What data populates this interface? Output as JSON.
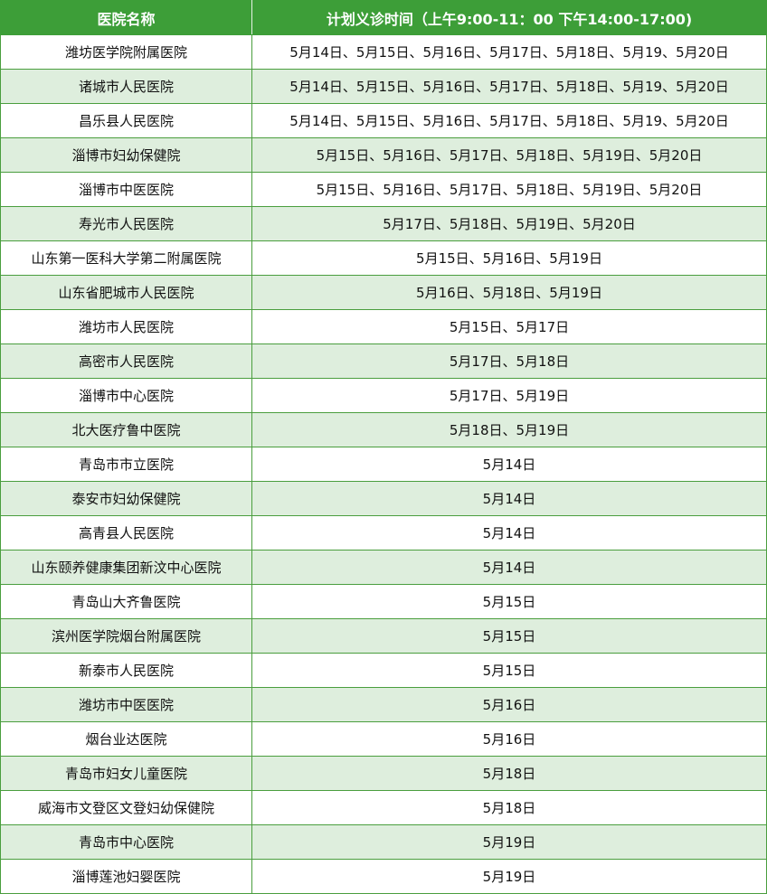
{
  "table": {
    "headers": [
      "医院名称",
      "计划义诊时间（上午9:00-11：00 下午14:00-17:00)"
    ],
    "rows": [
      [
        "潍坊医学院附属医院",
        "5月14日、5月15日、5月16日、5月17日、5月18日、5月19、5月20日"
      ],
      [
        "诸城市人民医院",
        "5月14日、5月15日、5月16日、5月17日、5月18日、5月19、5月20日"
      ],
      [
        "昌乐县人民医院",
        "5月14日、5月15日、5月16日、5月17日、5月18日、5月19、5月20日"
      ],
      [
        "淄博市妇幼保健院",
        "5月15日、5月16日、5月17日、5月18日、5月19日、5月20日"
      ],
      [
        "淄博市中医医院",
        "5月15日、5月16日、5月17日、5月18日、5月19日、5月20日"
      ],
      [
        "寿光市人民医院",
        "5月17日、5月18日、5月19日、5月20日"
      ],
      [
        "山东第一医科大学第二附属医院",
        "5月15日、5月16日、5月19日"
      ],
      [
        "山东省肥城市人民医院",
        "5月16日、5月18日、5月19日"
      ],
      [
        "潍坊市人民医院",
        "5月15日、5月17日"
      ],
      [
        "高密市人民医院",
        "5月17日、5月18日"
      ],
      [
        "淄博市中心医院",
        "5月17日、5月19日"
      ],
      [
        "北大医疗鲁中医院",
        "5月18日、5月19日"
      ],
      [
        "青岛市市立医院",
        "5月14日"
      ],
      [
        "泰安市妇幼保健院",
        "5月14日"
      ],
      [
        "高青县人民医院",
        "5月14日"
      ],
      [
        "山东颐养健康集团新汶中心医院",
        "5月14日"
      ],
      [
        "青岛山大齐鲁医院",
        "5月15日"
      ],
      [
        "滨州医学院烟台附属医院",
        "5月15日"
      ],
      [
        "新泰市人民医院",
        "5月15日"
      ],
      [
        "潍坊市中医医院",
        "5月16日"
      ],
      [
        "烟台业达医院",
        "5月16日"
      ],
      [
        "青岛市妇女儿童医院",
        "5月18日"
      ],
      [
        "威海市文登区文登妇幼保健院",
        "5月18日"
      ],
      [
        "青岛市中心医院",
        "5月19日"
      ],
      [
        "淄博莲池妇婴医院",
        "5月19日"
      ]
    ]
  },
  "colors": {
    "header_bg": "#3d9e38",
    "alt_row_bg": "#deeedd",
    "border": "#4a9e3e"
  }
}
